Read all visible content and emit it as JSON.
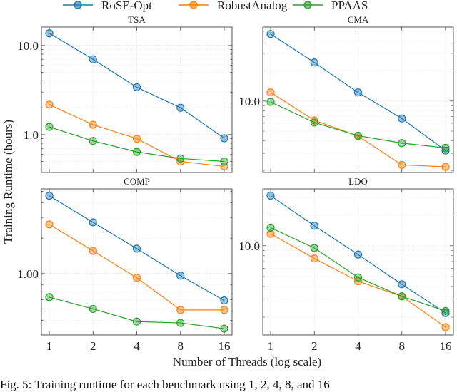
{
  "chart_data": {
    "type": "line",
    "legend": {
      "placement": "top-center",
      "entries": [
        "RoSE-Opt",
        "RobustAnalog",
        "PPAAS"
      ]
    },
    "xlabel": "Number of Threads (log scale)",
    "ylabel": "Training Runtime (hours)",
    "x": [
      1,
      2,
      4,
      8,
      16
    ],
    "x_tick_labels": [
      "1",
      "2",
      "4",
      "8",
      "16"
    ],
    "x_scale": "log2",
    "y_scale": "log10",
    "grid": true,
    "colors": {
      "RoSE-Opt": "#1f77b4",
      "RobustAnalog": "#ff7f0e",
      "PPAAS": "#2ca02c"
    },
    "panels": [
      {
        "title": "TSA",
        "ylim": [
          0.376,
          16.1
        ],
        "y_ticks": [
          {
            "value": 10,
            "label": "10.0"
          },
          {
            "value": 1,
            "label": "1.0"
          }
        ],
        "series": [
          {
            "name": "RoSE-Opt",
            "values": [
              13.7,
              7.0,
              3.4,
              2.0,
              0.91
            ]
          },
          {
            "name": "RobustAnalog",
            "values": [
              2.17,
              1.29,
              0.9,
              0.5,
              0.44
            ]
          },
          {
            "name": "PPAAS",
            "values": [
              1.22,
              0.85,
              0.64,
              0.54,
              0.5
            ]
          }
        ]
      },
      {
        "title": "CMA",
        "ylim": [
          1.93,
          55
        ],
        "y_ticks": [
          {
            "value": 10,
            "label": "10.0"
          }
        ],
        "series": [
          {
            "name": "RoSE-Opt",
            "values": [
              46.9,
              24.3,
              12.2,
              6.7,
              3.2
            ]
          },
          {
            "name": "RobustAnalog",
            "values": [
              12.2,
              6.4,
              4.47,
              2.3,
              2.2
            ]
          },
          {
            "name": "PPAAS",
            "values": [
              9.8,
              6.1,
              4.5,
              3.8,
              3.4
            ]
          }
        ]
      },
      {
        "title": "COMP",
        "ylim": [
          0.3,
          5.26
        ],
        "y_ticks": [
          {
            "value": 1,
            "label": "1.00"
          }
        ],
        "series": [
          {
            "name": "RoSE-Opt",
            "values": [
              4.6,
              2.73,
              1.63,
              0.96,
              0.59
            ]
          },
          {
            "name": "RobustAnalog",
            "values": [
              2.62,
              1.56,
              0.92,
              0.49,
              0.49
            ]
          },
          {
            "name": "PPAAS",
            "values": [
              0.63,
              0.5,
              0.39,
              0.38,
              0.34
            ]
          }
        ]
      },
      {
        "title": "LDO",
        "ylim": [
          1.34,
          36
        ],
        "y_ticks": [
          {
            "value": 10,
            "label": "10.0"
          }
        ],
        "series": [
          {
            "name": "RoSE-Opt",
            "values": [
              30.9,
              15.7,
              8.2,
              4.2,
              2.2
            ]
          },
          {
            "name": "RobustAnalog",
            "values": [
              13.1,
              7.5,
              4.5,
              3.2,
              1.6
            ]
          },
          {
            "name": "PPAAS",
            "values": [
              15.0,
              9.5,
              4.9,
              3.2,
              2.3
            ]
          }
        ]
      }
    ]
  },
  "caption": "Fig. 5: Training runtime for each benchmark using 1, 2, 4, 8, and 16"
}
